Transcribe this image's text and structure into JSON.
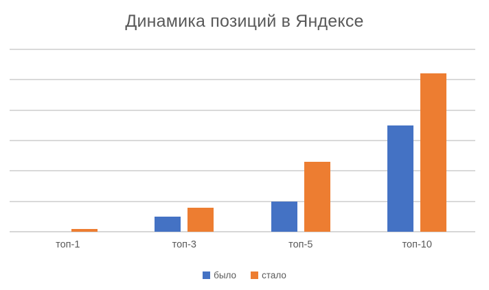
{
  "chart_data": {
    "type": "bar",
    "title": "Динамика позиций в Яндексе",
    "categories": [
      "топ-1",
      "топ-3",
      "топ-5",
      "топ-10"
    ],
    "series": [
      {
        "name": "было",
        "color": "#4472C4",
        "values": [
          0,
          5,
          10,
          35
        ]
      },
      {
        "name": "стало",
        "color": "#ED7D31",
        "values": [
          1,
          8,
          23,
          52
        ]
      }
    ],
    "xlabel": "",
    "ylabel": "",
    "ylim": [
      0,
      60
    ],
    "gridline_step": 10,
    "grid": true,
    "y_axis_labels_visible": false,
    "legend_position": "bottom"
  },
  "colors": {
    "text": "#595959",
    "gridline": "#D9D9D9",
    "axis_line": "#D6D6D6",
    "background": "#FFFFFF"
  }
}
